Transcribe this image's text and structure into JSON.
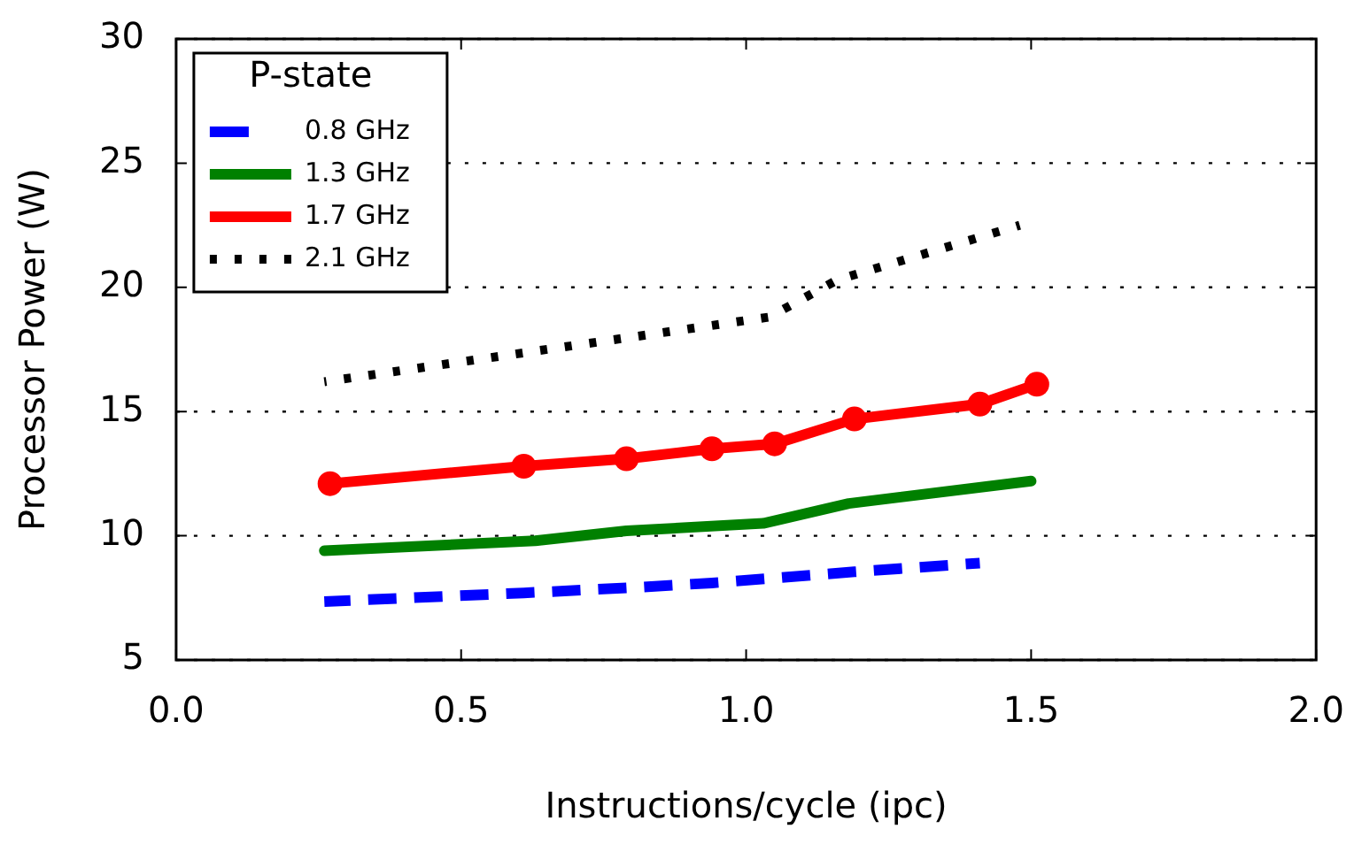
{
  "chart_data": {
    "type": "line",
    "xlabel": "Instructions/cycle (ipc)",
    "ylabel": "Processor Power (W)",
    "legend_title": "P-state",
    "legend": "top left",
    "grid": "y",
    "xlim": [
      0,
      2
    ],
    "xticks": [
      {
        "value": 0,
        "label": "0.0"
      },
      {
        "value": 0.5,
        "label": "0.5"
      },
      {
        "value": 1,
        "label": "1.0"
      },
      {
        "value": 1.5,
        "label": "1.5"
      },
      {
        "value": 2,
        "label": "2.0"
      }
    ],
    "ylim": [
      5,
      30
    ],
    "yticks": [
      5,
      10,
      15,
      20,
      25,
      30
    ],
    "series": [
      {
        "name": "0.8 GHz",
        "color": "#0000ff",
        "line_style": "dashed",
        "marker": "none",
        "x": [
          0.26,
          0.61,
          0.79,
          0.94,
          1.05,
          1.19,
          1.41
        ],
        "values": [
          7.35,
          7.7,
          7.9,
          8.1,
          8.3,
          8.55,
          8.9
        ]
      },
      {
        "name": "1.3 GHz",
        "color": "#008000",
        "line_style": "solid",
        "marker": "none",
        "x": [
          0.26,
          0.63,
          0.79,
          1.03,
          1.18,
          1.5
        ],
        "values": [
          9.4,
          9.8,
          10.2,
          10.5,
          11.3,
          12.2
        ]
      },
      {
        "name": "1.7 GHz",
        "color": "#ff0000",
        "line_style": "solid",
        "marker": "circle",
        "x": [
          0.27,
          0.61,
          0.79,
          0.94,
          1.05,
          1.19,
          1.41,
          1.51
        ],
        "values": [
          12.1,
          12.8,
          13.1,
          13.5,
          13.7,
          14.7,
          15.3,
          16.1
        ]
      },
      {
        "name": "2.1 GHz",
        "color": "#000000",
        "line_style": "dotted",
        "marker": "none",
        "x": [
          0.26,
          1.04,
          1.16,
          1.48
        ],
        "values": [
          16.2,
          18.8,
          20.3,
          22.5
        ]
      }
    ]
  }
}
